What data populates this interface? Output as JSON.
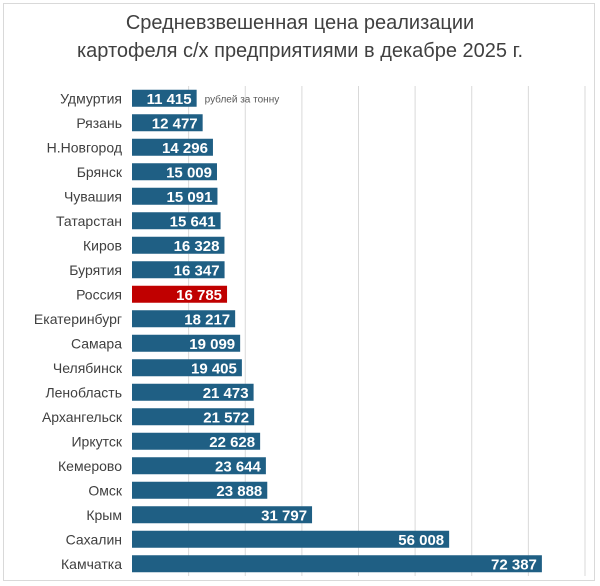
{
  "chart_data": {
    "type": "bar",
    "orientation": "horizontal",
    "title": [
      "Средневзвешенная цена реализации",
      "картофеля с/х предприятиями в декабре 2025 г."
    ],
    "unit_label": "рублей за тонну",
    "categories": [
      "Удмуртия",
      "Рязань",
      "Н.Новгород",
      "Брянск",
      "Чувашия",
      "Татарстан",
      "Киров",
      "Бурятия",
      "Россия",
      "Екатеринбург",
      "Самара",
      "Челябинск",
      "Ленобласть",
      "Архангельск",
      "Иркутск",
      "Кемерово",
      "Омск",
      "Крым",
      "Сахалин",
      "Камчатка"
    ],
    "values": [
      11415,
      12477,
      14296,
      15009,
      15091,
      15641,
      16328,
      16347,
      16785,
      18217,
      19099,
      19405,
      21473,
      21572,
      22628,
      23644,
      23888,
      31797,
      56008,
      72387
    ],
    "labels": [
      "11 415",
      "12 477",
      "14 296",
      "15 009",
      "15 091",
      "15 641",
      "16 328",
      "16 347",
      "16 785",
      "18 217",
      "19 099",
      "19 405",
      "21 473",
      "21 572",
      "22 628",
      "23 644",
      "23 888",
      "31 797",
      "56 008",
      "72 387"
    ],
    "highlight": "Россия",
    "xlim": [
      0,
      80000
    ],
    "grid": true,
    "colors": {
      "bar": "#1f5f84",
      "highlight": "#c00000",
      "grid": "#d9d9d9"
    }
  }
}
